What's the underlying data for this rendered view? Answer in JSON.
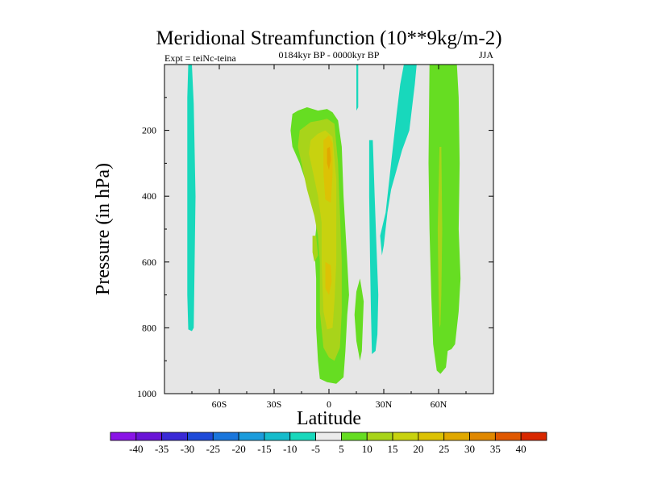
{
  "chart_data": {
    "type": "contour",
    "title": "Meridional Streamfunction (10**9kg/m-2)",
    "subtitle_left": "Expt = teiNc-teina",
    "subtitle_center": "0184kyr BP - 0000kyr BP",
    "subtitle_right": "JJA",
    "xlabel": "Latitude",
    "ylabel": "Pressure (in hPa)",
    "xlim": [
      -90,
      90
    ],
    "ylim": [
      1000,
      0
    ],
    "x_ticks": [
      {
        "value": -60,
        "label": "60S"
      },
      {
        "value": -30,
        "label": "30S"
      },
      {
        "value": 0,
        "label": "0"
      },
      {
        "value": 30,
        "label": "30N"
      },
      {
        "value": 60,
        "label": "60N"
      }
    ],
    "y_ticks": [
      {
        "value": 200,
        "label": "200"
      },
      {
        "value": 400,
        "label": "400"
      },
      {
        "value": 600,
        "label": "600"
      },
      {
        "value": 800,
        "label": "800"
      },
      {
        "value": 1000,
        "label": "1000"
      }
    ],
    "background_color": "#e6e6e6",
    "contour_regions": [
      {
        "name": "sh-high-lat-negative",
        "level": -5,
        "color": "#18d8bc",
        "outline": [
          [
            -77,
            0
          ],
          [
            -75,
            0
          ],
          [
            -74,
            120
          ],
          [
            -73,
            400
          ],
          [
            -73.5,
            600
          ],
          [
            -74,
            800
          ],
          [
            -75,
            810
          ],
          [
            -77,
            805
          ],
          [
            -77.5,
            700
          ],
          [
            -77.5,
            300
          ],
          [
            -77.5,
            100
          ]
        ]
      },
      {
        "name": "equatorial-outer-positive",
        "level": 5,
        "color": "#66dd22",
        "outline": [
          [
            -20,
            150
          ],
          [
            -17,
            140
          ],
          [
            -12,
            130
          ],
          [
            -6,
            140
          ],
          [
            -1,
            135
          ],
          [
            2,
            145
          ],
          [
            5,
            170
          ],
          [
            7,
            250
          ],
          [
            8,
            400
          ],
          [
            9,
            500
          ],
          [
            10,
            600
          ],
          [
            11,
            700
          ],
          [
            10,
            760
          ],
          [
            9,
            870
          ],
          [
            8,
            950
          ],
          [
            4,
            970
          ],
          [
            -1,
            965
          ],
          [
            -5,
            955
          ],
          [
            -6,
            900
          ],
          [
            -7,
            800
          ],
          [
            -7,
            650
          ],
          [
            -8,
            550
          ],
          [
            -7,
            500
          ],
          [
            -7,
            450
          ],
          [
            -10,
            400
          ],
          [
            -16,
            300
          ],
          [
            -20,
            250
          ],
          [
            -21,
            200
          ]
        ]
      },
      {
        "name": "equatorial-band-10",
        "level": 10,
        "color": "#a8d41a",
        "outline": [
          [
            -16,
            200
          ],
          [
            -10,
            175
          ],
          [
            -5,
            170
          ],
          [
            -1,
            165
          ],
          [
            3,
            180
          ],
          [
            5,
            300
          ],
          [
            6,
            450
          ],
          [
            7,
            600
          ],
          [
            7,
            750
          ],
          [
            6,
            860
          ],
          [
            3,
            900
          ],
          [
            0,
            890
          ],
          [
            -3,
            860
          ],
          [
            -5,
            750
          ],
          [
            -5,
            600
          ],
          [
            -6,
            520
          ],
          [
            -8,
            460
          ],
          [
            -12,
            380
          ],
          [
            -15,
            300
          ],
          [
            -17,
            250
          ]
        ]
      },
      {
        "name": "equatorial-band-15",
        "level": 15,
        "color": "#c8d20f",
        "outline": [
          [
            -10,
            230
          ],
          [
            -6,
            210
          ],
          [
            -2,
            200
          ],
          [
            2,
            220
          ],
          [
            4,
            350
          ],
          [
            4,
            500
          ],
          [
            4,
            600
          ],
          [
            3,
            720
          ],
          [
            2,
            800
          ],
          [
            -1,
            805
          ],
          [
            -3,
            750
          ],
          [
            -4,
            600
          ],
          [
            -4,
            480
          ],
          [
            -6,
            400
          ],
          [
            -9,
            320
          ],
          [
            -11,
            270
          ]
        ]
      },
      {
        "name": "equatorial-core-20",
        "level": 20,
        "color": "#dcc205",
        "outline": [
          [
            -3,
            230
          ],
          [
            0,
            215
          ],
          [
            2,
            240
          ],
          [
            2,
            330
          ],
          [
            1,
            420
          ],
          [
            -2,
            410
          ],
          [
            -3,
            330
          ]
        ]
      },
      {
        "name": "equatorial-core-25",
        "level": 25,
        "color": "#e0a800",
        "outline": [
          [
            -1,
            255
          ],
          [
            0.5,
            250
          ],
          [
            1,
            290
          ],
          [
            0,
            320
          ],
          [
            -1,
            300
          ]
        ]
      },
      {
        "name": "equatorial-lower-core-20",
        "level": 20,
        "color": "#dcc205",
        "outline": [
          [
            -2,
            600
          ],
          [
            1,
            610
          ],
          [
            1.5,
            660
          ],
          [
            0,
            700
          ],
          [
            -2,
            680
          ]
        ]
      },
      {
        "name": "sh-small-band",
        "level": 10,
        "color": "#a8d41a",
        "outline": [
          [
            -9,
            520
          ],
          [
            -7,
            520
          ],
          [
            -6,
            580
          ],
          [
            -8,
            600
          ],
          [
            -9,
            570
          ]
        ]
      },
      {
        "name": "nh-thin-negative-1",
        "level": -5,
        "color": "#18d8bc",
        "outline": [
          [
            15,
            0
          ],
          [
            16,
            0
          ],
          [
            16,
            130
          ],
          [
            15,
            140
          ]
        ]
      },
      {
        "name": "nh-thin-negative-2",
        "level": -5,
        "color": "#18d8bc",
        "outline": [
          [
            22,
            230
          ],
          [
            24,
            230
          ],
          [
            25,
            400
          ],
          [
            26,
            550
          ],
          [
            27,
            700
          ],
          [
            26.5,
            820
          ],
          [
            25.5,
            870
          ],
          [
            23.5,
            880
          ],
          [
            23,
            750
          ],
          [
            22.5,
            600
          ],
          [
            22,
            400
          ]
        ]
      },
      {
        "name": "nh-mid-negative",
        "level": -5,
        "color": "#18d8bc",
        "outline": [
          [
            28,
            520
          ],
          [
            31,
            450
          ],
          [
            34,
            300
          ],
          [
            37,
            150
          ],
          [
            39,
            60
          ],
          [
            41,
            0
          ],
          [
            48,
            0
          ],
          [
            47,
            60
          ],
          [
            44,
            200
          ],
          [
            40,
            260
          ],
          [
            37,
            320
          ],
          [
            34,
            380
          ],
          [
            32,
            450
          ],
          [
            30,
            550
          ],
          [
            29,
            580
          ]
        ]
      },
      {
        "name": "nh-small-positive",
        "level": 5,
        "color": "#66dd22",
        "outline": [
          [
            15,
            690
          ],
          [
            17,
            650
          ],
          [
            19,
            720
          ],
          [
            18,
            870
          ],
          [
            17,
            900
          ],
          [
            15,
            840
          ],
          [
            14,
            760
          ]
        ]
      },
      {
        "name": "nh-high-lat-positive",
        "level": 5,
        "color": "#66dd22",
        "outline": [
          [
            55,
            0
          ],
          [
            70,
            0
          ],
          [
            71,
            100
          ],
          [
            71.5,
            300
          ],
          [
            71,
            500
          ],
          [
            72,
            650
          ],
          [
            71,
            750
          ],
          [
            69,
            850
          ],
          [
            67,
            865
          ],
          [
            65,
            870
          ],
          [
            64,
            920
          ],
          [
            61,
            940
          ],
          [
            59,
            930
          ],
          [
            57,
            850
          ],
          [
            56,
            700
          ],
          [
            55,
            500
          ],
          [
            54.5,
            300
          ]
        ]
      },
      {
        "name": "nh-high-lat-band-10",
        "level": 10,
        "color": "#a8d41a",
        "outline": [
          [
            60.5,
            250
          ],
          [
            61.5,
            250
          ],
          [
            62,
            500
          ],
          [
            61.5,
            700
          ],
          [
            61,
            790
          ],
          [
            60.5,
            800
          ],
          [
            60,
            700
          ],
          [
            59.5,
            500
          ]
        ]
      }
    ],
    "colorbar": {
      "levels": [
        -40,
        -35,
        -30,
        -25,
        -20,
        -15,
        -10,
        -5,
        5,
        10,
        15,
        20,
        25,
        30,
        35,
        40
      ],
      "labels": [
        "-40",
        "-35",
        "-30",
        "-25",
        "-20",
        "-15",
        "-10",
        "-5",
        "5",
        "10",
        "15",
        "20",
        "25",
        "30",
        "35",
        "40"
      ],
      "colors": [
        "#8a14e6",
        "#6a14d6",
        "#3a2ad6",
        "#1e4ad8",
        "#1a76dc",
        "#1c9cdc",
        "#16bccc",
        "#18d8bc",
        "#ececec",
        "#66dd22",
        "#a8d41a",
        "#c8d20f",
        "#dcc205",
        "#e0a800",
        "#e08800",
        "#e05800",
        "#d82800"
      ]
    }
  }
}
